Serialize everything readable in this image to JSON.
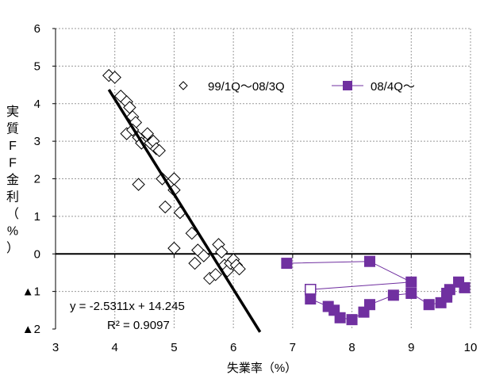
{
  "chart_data": {
    "type": "scatter",
    "xlabel": "失業率（%）",
    "ylabel_chars": [
      "実",
      "質",
      "F",
      "F",
      "金",
      "利",
      "（",
      "%",
      "）"
    ],
    "xlim": [
      3,
      10
    ],
    "ylim": [
      -2,
      6
    ],
    "x_ticks": [
      {
        "value": 3,
        "label": "3"
      },
      {
        "value": 4,
        "label": "4"
      },
      {
        "value": 5,
        "label": "5"
      },
      {
        "value": 6,
        "label": "6"
      },
      {
        "value": 7,
        "label": "7"
      },
      {
        "value": 8,
        "label": "8"
      },
      {
        "value": 9,
        "label": "9"
      },
      {
        "value": 10,
        "label": "10"
      }
    ],
    "y_ticks": [
      {
        "value": 6,
        "label": "6"
      },
      {
        "value": 5,
        "label": "5"
      },
      {
        "value": 4,
        "label": "4"
      },
      {
        "value": 3,
        "label": "3"
      },
      {
        "value": 2,
        "label": "2"
      },
      {
        "value": 1,
        "label": "1"
      },
      {
        "value": 0,
        "label": "0"
      },
      {
        "value": -1,
        "label": "▲1"
      },
      {
        "value": -2,
        "label": "▲2"
      }
    ],
    "grid": true,
    "legend_position": "top-right",
    "series": [
      {
        "name": "99/1Q～08/3Q",
        "marker": "diamond-open",
        "color": "#000000",
        "points": [
          [
            3.9,
            4.75
          ],
          [
            4.0,
            4.7
          ],
          [
            4.1,
            4.2
          ],
          [
            4.2,
            4.05
          ],
          [
            4.25,
            3.9
          ],
          [
            4.3,
            3.65
          ],
          [
            4.35,
            3.5
          ],
          [
            4.2,
            3.2
          ],
          [
            4.3,
            3.3
          ],
          [
            4.4,
            3.1
          ],
          [
            4.45,
            2.95
          ],
          [
            4.55,
            3.2
          ],
          [
            4.6,
            2.95
          ],
          [
            4.65,
            3.0
          ],
          [
            4.7,
            2.8
          ],
          [
            4.75,
            2.75
          ],
          [
            4.8,
            2.0
          ],
          [
            4.85,
            1.25
          ],
          [
            4.4,
            1.85
          ],
          [
            5.0,
            1.7
          ],
          [
            5.0,
            2.0
          ],
          [
            5.1,
            1.1
          ],
          [
            5.0,
            0.15
          ],
          [
            5.3,
            0.55
          ],
          [
            5.35,
            -0.25
          ],
          [
            5.4,
            0.1
          ],
          [
            5.5,
            -0.05
          ],
          [
            5.6,
            -0.65
          ],
          [
            5.7,
            -0.55
          ],
          [
            5.75,
            0.25
          ],
          [
            5.8,
            0.05
          ],
          [
            5.85,
            -0.3
          ],
          [
            5.9,
            -0.45
          ],
          [
            5.95,
            -0.25
          ],
          [
            6.0,
            -0.15
          ],
          [
            6.05,
            -0.3
          ],
          [
            6.1,
            -0.4
          ]
        ]
      },
      {
        "name": "08/4Q～",
        "marker": "square-filled",
        "color": "#7030A0",
        "hollow_index": 3,
        "points": [
          [
            6.9,
            -0.25
          ],
          [
            8.3,
            -0.2
          ],
          [
            9.0,
            -0.75
          ],
          [
            7.3,
            -0.95
          ],
          [
            7.3,
            -1.2
          ],
          [
            7.6,
            -1.4
          ],
          [
            7.7,
            -1.5
          ],
          [
            7.8,
            -1.7
          ],
          [
            8.0,
            -1.75
          ],
          [
            8.2,
            -1.55
          ],
          [
            8.3,
            -1.35
          ],
          [
            8.7,
            -1.1
          ],
          [
            9.0,
            -1.05
          ],
          [
            9.3,
            -1.35
          ],
          [
            9.5,
            -1.3
          ],
          [
            9.6,
            -1.15
          ],
          [
            9.6,
            -1.05
          ],
          [
            9.65,
            -0.95
          ],
          [
            9.8,
            -0.75
          ],
          [
            9.9,
            -0.9
          ]
        ]
      }
    ],
    "trendline": {
      "slope": -2.5311,
      "intercept": 14.245,
      "x_range": [
        3.9,
        6.45
      ],
      "equation": "y = -2.5311x + 14.245",
      "r_squared_text": "R² = 0.9097"
    }
  }
}
